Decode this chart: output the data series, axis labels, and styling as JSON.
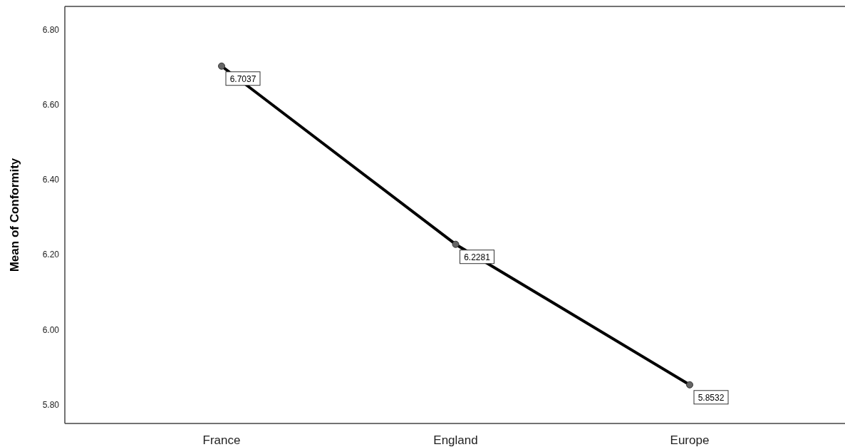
{
  "chart_data": {
    "type": "line",
    "ylabel": "Mean of Conformity",
    "categories": [
      "France",
      "England",
      "Europe"
    ],
    "series": [
      {
        "color": "#000000",
        "values": [
          6.7037,
          6.2281,
          5.8532
        ]
      }
    ],
    "ylim": [
      5.75,
      6.863
    ],
    "yticks": [
      {
        "value": 5.8,
        "label": "5.80"
      },
      {
        "value": 6.0,
        "label": "6.00"
      },
      {
        "value": 6.2,
        "label": "6.20"
      },
      {
        "value": 6.4,
        "label": "6.40"
      },
      {
        "value": 6.6,
        "label": "6.60"
      },
      {
        "value": 6.8,
        "label": "6.80"
      }
    ],
    "marker": "circle",
    "data_labels": true,
    "grid": false
  }
}
